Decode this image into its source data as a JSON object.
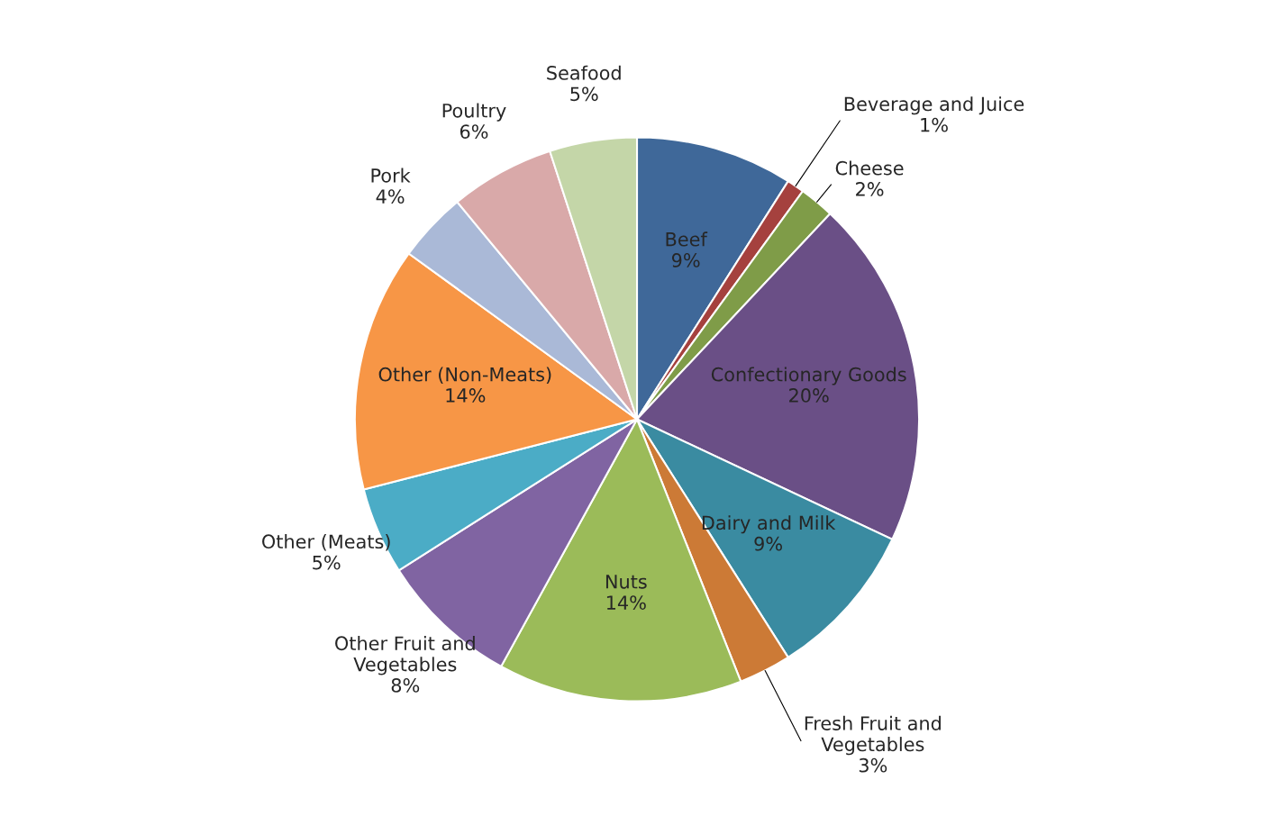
{
  "chart_data": {
    "type": "pie",
    "categories": [
      "Beef",
      "Beverage and Juice",
      "Cheese",
      "Confectionary Goods",
      "Dairy and Milk",
      "Fresh Fruit and Vegetables",
      "Nuts",
      "Other Fruit and Vegetables",
      "Other (Meats)",
      "Other (Non-Meats)",
      "Pork",
      "Poultry",
      "Seafood"
    ],
    "values": [
      9,
      1,
      2,
      20,
      9,
      3,
      14,
      8,
      5,
      14,
      4,
      6,
      5
    ],
    "colors": [
      "#3f6899",
      "#a5413e",
      "#7f9c48",
      "#6a4f86",
      "#3a8ba1",
      "#cc7a36",
      "#9bbb59",
      "#8064a2",
      "#4bacc6",
      "#f79646",
      "#aab9d7",
      "#d9a9a9",
      "#c4d6a8"
    ],
    "value_labels": [
      "9%",
      "1%",
      "2%",
      "20%",
      "9%",
      "3%",
      "14%",
      "8%",
      "5%",
      "14%",
      "4%",
      "6%",
      "5%"
    ],
    "legend": false
  }
}
